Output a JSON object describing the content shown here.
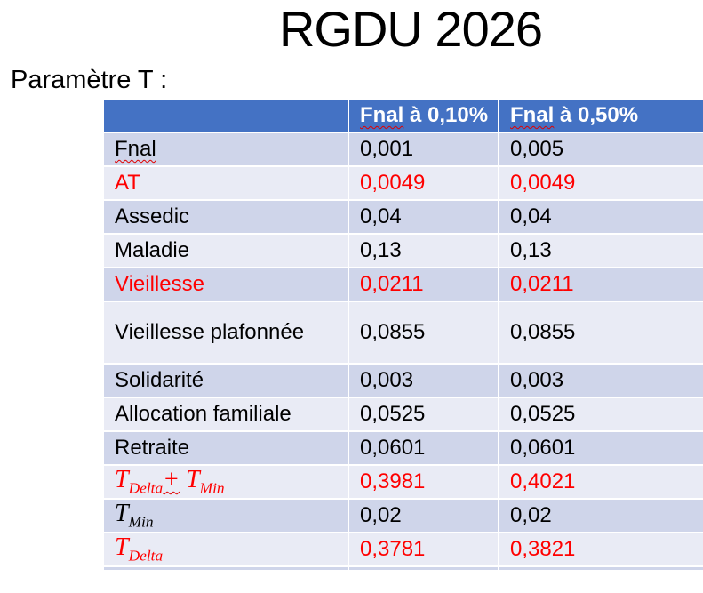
{
  "title": "RGDU 2026",
  "subtitle": "Paramètre T :",
  "colors": {
    "header_bg": "#4472C4",
    "band_dark": "#CFD5EA",
    "band_light": "#E9EBF5",
    "red_text": "#FF0000",
    "squiggle_red": "#E00000",
    "header_text": "#FFFFFF"
  },
  "table": {
    "columns": [
      {
        "text": ""
      },
      {
        "misspelled": "Fnal",
        "rest": " à 0,10%"
      },
      {
        "misspelled": "Fnal",
        "rest": " à 0,50%"
      }
    ],
    "rows": [
      {
        "label": "Fnal",
        "wavy": true,
        "red": false,
        "v1": "0,001",
        "v2": "0,005"
      },
      {
        "label": "AT",
        "red": true,
        "v1": "0,0049",
        "v2": "0,0049"
      },
      {
        "label": "Assedic",
        "red": false,
        "v1": "0,04",
        "v2": "0,04"
      },
      {
        "label": "Maladie",
        "red": false,
        "v1": "0,13",
        "v2": "0,13"
      },
      {
        "label": "Vieillesse",
        "red": true,
        "v1": "0,0211",
        "v2": "0,0211"
      },
      {
        "label": "Vieillesse plafonnée",
        "red": false,
        "tall": true,
        "v1": "0,0855",
        "v2": "0,0855"
      },
      {
        "label": "Solidarité",
        "red": false,
        "v1": "0,003",
        "v2": "0,003"
      },
      {
        "label": "Allocation familiale",
        "red": false,
        "v1": "0,0525",
        "v2": "0,0525"
      },
      {
        "label": "Retraite",
        "red": false,
        "v1": "0,0601",
        "v2": "0,0601"
      },
      {
        "math": [
          {
            "base": "T",
            "sub": "Delta"
          },
          {
            "op": "+"
          },
          {
            "base": "T",
            "sub": "Min"
          }
        ],
        "red": true,
        "v1": "0,3981",
        "v2": "0,4021"
      },
      {
        "math": [
          {
            "base": "T",
            "sub": "Min"
          }
        ],
        "red": false,
        "v1": "0,02",
        "v2": "0,02"
      },
      {
        "math": [
          {
            "base": "T",
            "sub": "Delta"
          }
        ],
        "red": true,
        "v1": "0,3781",
        "v2": "0,3821"
      }
    ]
  }
}
